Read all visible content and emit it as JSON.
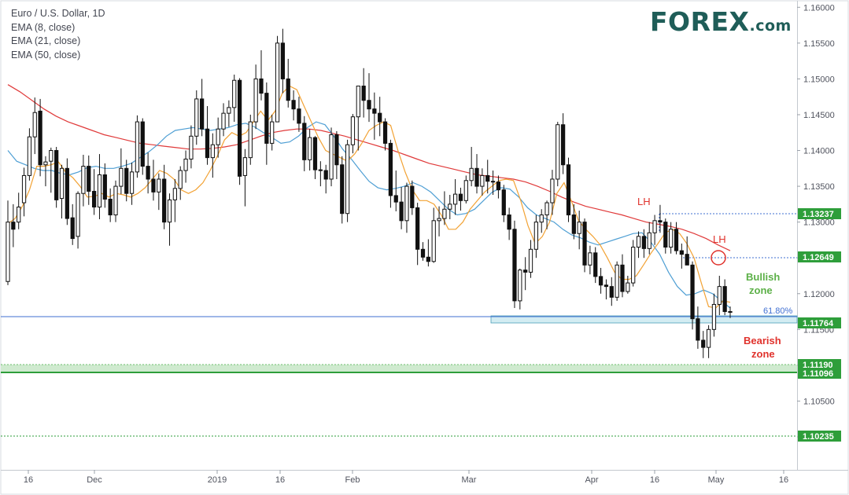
{
  "legend": {
    "title": "Euro / U.S. Dollar, 1D",
    "ema_short": "EMA (8, close)",
    "ema_mid": "EMA (21, close)",
    "ema_long": "EMA (50, close)"
  },
  "logo": {
    "main": "FOREX",
    "suffix": ".com"
  },
  "colors": {
    "ema8": "#f2a234",
    "ema21": "#4f9fd4",
    "ema50": "#e03a3a",
    "candle": "#111111",
    "support_zone": "#d3ecf2",
    "green_zone": "#bfe3bf",
    "price_tag": "#2e9e3a",
    "annotation_red": "#e0322c",
    "annotation_green": "#5cb048",
    "fib": "#3f6fd2"
  },
  "chart_data": {
    "type": "candlestick",
    "title": "Euro / U.S. Dollar, 1D",
    "indicators": [
      "EMA (8, close)",
      "EMA (21, close)",
      "EMA (50, close)"
    ],
    "ylim": [
      1.0955,
      1.1608
    ],
    "y_ticks": [
      "1.16000",
      "1.15500",
      "1.15000",
      "1.14500",
      "1.14000",
      "1.13500",
      "1.13000",
      "1.12500",
      "1.12000",
      "1.11500",
      "1.11000",
      "1.10500",
      "1.10000"
    ],
    "x_ticks": [
      "16",
      "Dec",
      "2019",
      "16",
      "Feb",
      "Mar",
      "Apr",
      "16",
      "May",
      "16"
    ],
    "candles": [
      [
        1.1217,
        1.133,
        1.1212,
        1.13
      ],
      [
        1.13,
        1.1325,
        1.1265,
        1.129
      ],
      [
        1.13,
        1.1341,
        1.129,
        1.1321
      ],
      [
        1.1327,
        1.1376,
        1.1308,
        1.1365
      ],
      [
        1.1365,
        1.1431,
        1.1358,
        1.1419
      ],
      [
        1.1419,
        1.1474,
        1.1395,
        1.1453
      ],
      [
        1.1455,
        1.1472,
        1.1364,
        1.138
      ],
      [
        1.138,
        1.1392,
        1.135,
        1.1384
      ],
      [
        1.1385,
        1.1404,
        1.1341,
        1.14
      ],
      [
        1.14,
        1.1405,
        1.132,
        1.1331
      ],
      [
        1.1333,
        1.138,
        1.1305,
        1.1375
      ],
      [
        1.1375,
        1.1389,
        1.1296,
        1.1305
      ],
      [
        1.1306,
        1.1325,
        1.1268,
        1.1277
      ],
      [
        1.128,
        1.1343,
        1.1263,
        1.134
      ],
      [
        1.134,
        1.1394,
        1.1322,
        1.1378
      ],
      [
        1.1378,
        1.1393,
        1.1324,
        1.1343
      ],
      [
        1.1343,
        1.1374,
        1.131,
        1.1321
      ],
      [
        1.1321,
        1.1395,
        1.1304,
        1.1366
      ],
      [
        1.1366,
        1.1382,
        1.132,
        1.1332
      ],
      [
        1.1332,
        1.1347,
        1.13,
        1.131
      ],
      [
        1.131,
        1.1358,
        1.13,
        1.135
      ],
      [
        1.135,
        1.1403,
        1.1339,
        1.1375
      ],
      [
        1.1375,
        1.1387,
        1.1329,
        1.134
      ],
      [
        1.134,
        1.1383,
        1.1324,
        1.137
      ],
      [
        1.137,
        1.1449,
        1.1362,
        1.144
      ],
      [
        1.144,
        1.1445,
        1.1366,
        1.1378
      ],
      [
        1.1378,
        1.1397,
        1.134,
        1.136
      ],
      [
        1.136,
        1.1387,
        1.133,
        1.1342
      ],
      [
        1.1342,
        1.1368,
        1.1317,
        1.136
      ],
      [
        1.136,
        1.138,
        1.129,
        1.13
      ],
      [
        1.13,
        1.134,
        1.1267,
        1.1331
      ],
      [
        1.1331,
        1.136,
        1.13,
        1.1347
      ],
      [
        1.1347,
        1.1378,
        1.1331,
        1.1372
      ],
      [
        1.1372,
        1.14,
        1.1355,
        1.1388
      ],
      [
        1.1388,
        1.1435,
        1.1375,
        1.142
      ],
      [
        1.142,
        1.1484,
        1.1408,
        1.1472
      ],
      [
        1.1472,
        1.15,
        1.142,
        1.143
      ],
      [
        1.143,
        1.1462,
        1.138,
        1.139
      ],
      [
        1.139,
        1.1424,
        1.1362,
        1.1408
      ],
      [
        1.1408,
        1.1446,
        1.139,
        1.143
      ],
      [
        1.143,
        1.1466,
        1.142,
        1.1452
      ],
      [
        1.1452,
        1.147,
        1.1433,
        1.146
      ],
      [
        1.146,
        1.1506,
        1.144,
        1.1498
      ],
      [
        1.1498,
        1.1501,
        1.1352,
        1.1364
      ],
      [
        1.1365,
        1.1402,
        1.1322,
        1.139
      ],
      [
        1.139,
        1.145,
        1.138,
        1.144
      ],
      [
        1.144,
        1.152,
        1.143,
        1.15
      ],
      [
        1.15,
        1.154,
        1.147,
        1.148
      ],
      [
        1.148,
        1.1495,
        1.138,
        1.141
      ],
      [
        1.141,
        1.145,
        1.14,
        1.144
      ],
      [
        1.144,
        1.156,
        1.144,
        1.155
      ],
      [
        1.155,
        1.157,
        1.148,
        1.15
      ],
      [
        1.15,
        1.1528,
        1.146,
        1.147
      ],
      [
        1.147,
        1.1484,
        1.1442,
        1.1458
      ],
      [
        1.1458,
        1.1475,
        1.1426,
        1.1438
      ],
      [
        1.1438,
        1.1448,
        1.1371,
        1.1387
      ],
      [
        1.1387,
        1.143,
        1.1372,
        1.1418
      ],
      [
        1.1418,
        1.142,
        1.136,
        1.1373
      ],
      [
        1.1373,
        1.1385,
        1.135,
        1.1372
      ],
      [
        1.1372,
        1.138,
        1.134,
        1.136
      ],
      [
        1.136,
        1.1432,
        1.135,
        1.1422
      ],
      [
        1.1422,
        1.1427,
        1.136,
        1.138
      ],
      [
        1.138,
        1.1392,
        1.1298,
        1.1312
      ],
      [
        1.1312,
        1.1415,
        1.13,
        1.1408
      ],
      [
        1.1408,
        1.1451,
        1.1396,
        1.1447
      ],
      [
        1.1447,
        1.1485,
        1.14,
        1.149
      ],
      [
        1.149,
        1.1515,
        1.1446,
        1.147
      ],
      [
        1.147,
        1.1508,
        1.144,
        1.1458
      ],
      [
        1.1458,
        1.1481,
        1.1415,
        1.1452
      ],
      [
        1.1452,
        1.1475,
        1.142,
        1.144
      ],
      [
        1.144,
        1.1445,
        1.14,
        1.141
      ],
      [
        1.141,
        1.1415,
        1.132,
        1.1337
      ],
      [
        1.1337,
        1.1372,
        1.1315,
        1.1328
      ],
      [
        1.1328,
        1.1349,
        1.129,
        1.1302
      ],
      [
        1.1302,
        1.1355,
        1.1285,
        1.135
      ],
      [
        1.135,
        1.1358,
        1.131,
        1.132
      ],
      [
        1.132,
        1.1327,
        1.124,
        1.1262
      ],
      [
        1.1262,
        1.1272,
        1.1246,
        1.1251
      ],
      [
        1.1251,
        1.1276,
        1.1238,
        1.1245
      ],
      [
        1.1245,
        1.132,
        1.1243,
        1.1302
      ],
      [
        1.1302,
        1.1322,
        1.128,
        1.1305
      ],
      [
        1.1305,
        1.1343,
        1.1296,
        1.1318
      ],
      [
        1.1318,
        1.1338,
        1.1304,
        1.1325
      ],
      [
        1.1325,
        1.136,
        1.131,
        1.1339
      ],
      [
        1.1339,
        1.1348,
        1.1316,
        1.133
      ],
      [
        1.133,
        1.1365,
        1.1326,
        1.1358
      ],
      [
        1.1358,
        1.1405,
        1.135,
        1.1375
      ],
      [
        1.1375,
        1.1395,
        1.134,
        1.135
      ],
      [
        1.135,
        1.1375,
        1.1337,
        1.1365
      ],
      [
        1.1365,
        1.1387,
        1.134,
        1.1357
      ],
      [
        1.1357,
        1.1372,
        1.1338,
        1.1356
      ],
      [
        1.1356,
        1.1365,
        1.1333,
        1.1345
      ],
      [
        1.1345,
        1.1352,
        1.13,
        1.131
      ],
      [
        1.131,
        1.132,
        1.1275,
        1.129
      ],
      [
        1.129,
        1.1302,
        1.118,
        1.119
      ],
      [
        1.119,
        1.1235,
        1.1178,
        1.1233
      ],
      [
        1.1233,
        1.1251,
        1.1205,
        1.123
      ],
      [
        1.123,
        1.1275,
        1.1222,
        1.1262
      ],
      [
        1.1262,
        1.131,
        1.125,
        1.13
      ],
      [
        1.13,
        1.1318,
        1.1285,
        1.131
      ],
      [
        1.131,
        1.133,
        1.129,
        1.1327
      ],
      [
        1.1327,
        1.1373,
        1.131,
        1.136
      ],
      [
        1.136,
        1.144,
        1.135,
        1.1436
      ],
      [
        1.1436,
        1.1452,
        1.1367,
        1.138
      ],
      [
        1.138,
        1.139,
        1.13,
        1.131
      ],
      [
        1.131,
        1.1325,
        1.1276,
        1.1284
      ],
      [
        1.1284,
        1.1316,
        1.1262,
        1.13
      ],
      [
        1.13,
        1.1305,
        1.123,
        1.124
      ],
      [
        1.124,
        1.1267,
        1.1227,
        1.1257
      ],
      [
        1.1257,
        1.1265,
        1.1215,
        1.1224
      ],
      [
        1.1224,
        1.1236,
        1.12,
        1.1212
      ],
      [
        1.1212,
        1.122,
        1.1192,
        1.121
      ],
      [
        1.121,
        1.1223,
        1.1183,
        1.1195
      ],
      [
        1.1195,
        1.1245,
        1.119,
        1.124
      ],
      [
        1.124,
        1.1255,
        1.1195,
        1.1203
      ],
      [
        1.1203,
        1.1225,
        1.12,
        1.1215
      ],
      [
        1.1215,
        1.1275,
        1.121,
        1.1265
      ],
      [
        1.1265,
        1.1287,
        1.125,
        1.128
      ],
      [
        1.128,
        1.129,
        1.125,
        1.1263
      ],
      [
        1.1263,
        1.13,
        1.1255,
        1.1285
      ],
      [
        1.1285,
        1.131,
        1.1268,
        1.1302
      ],
      [
        1.1302,
        1.1324,
        1.1285,
        1.13
      ],
      [
        1.13,
        1.1305,
        1.1256,
        1.1265
      ],
      [
        1.1265,
        1.13,
        1.1256,
        1.129
      ],
      [
        1.129,
        1.13,
        1.1255,
        1.126
      ],
      [
        1.126,
        1.127,
        1.1235,
        1.1255
      ],
      [
        1.1255,
        1.128,
        1.124,
        1.124
      ],
      [
        1.124,
        1.1245,
        1.115,
        1.1165
      ],
      [
        1.1165,
        1.1182,
        1.1123,
        1.1135
      ],
      [
        1.1135,
        1.1148,
        1.111,
        1.1125
      ],
      [
        1.1125,
        1.1156,
        1.111,
        1.115
      ],
      [
        1.115,
        1.12,
        1.114,
        1.1185
      ],
      [
        1.1185,
        1.1225,
        1.117,
        1.121
      ],
      [
        1.121,
        1.122,
        1.117,
        1.1175
      ],
      [
        1.1175,
        1.1182,
        1.1166,
        1.1174
      ]
    ],
    "ema8": [
      1.1298,
      1.1305,
      1.1322,
      1.1345,
      1.1378,
      1.1378,
      1.138,
      1.1384,
      1.137,
      1.1362,
      1.135,
      1.1335,
      1.1336,
      1.134,
      1.1335,
      1.134,
      1.1338,
      1.1335,
      1.134,
      1.1348,
      1.136,
      1.1372,
      1.1368,
      1.136,
      1.1345,
      1.134,
      1.1345,
      1.1355,
      1.1372,
      1.1392,
      1.1415,
      1.1425,
      1.142,
      1.1425,
      1.144,
      1.1455,
      1.1442,
      1.1455,
      1.148,
      1.149,
      1.1485,
      1.1462,
      1.144,
      1.1418,
      1.14,
      1.1395,
      1.139,
      1.1385,
      1.1395,
      1.141,
      1.1428,
      1.1435,
      1.144,
      1.1435,
      1.14,
      1.137,
      1.1345,
      1.133,
      1.133,
      1.1325,
      1.131,
      1.129,
      1.129,
      1.13,
      1.1318,
      1.133,
      1.1342,
      1.135,
      1.1358,
      1.136,
      1.1358,
      1.133,
      1.1295,
      1.127,
      1.128,
      1.13,
      1.134,
      1.1355,
      1.133,
      1.1302,
      1.129,
      1.128,
      1.1268,
      1.125,
      1.123,
      1.122,
      1.122,
      1.1225,
      1.124,
      1.1256,
      1.127,
      1.1285,
      1.129,
      1.1284,
      1.127,
      1.125,
      1.1215,
      1.1182,
      1.118,
      1.119,
      1.1188
    ],
    "ema21": [
      1.14,
      1.1385,
      1.138,
      1.1375,
      1.1372,
      1.1372,
      1.1368,
      1.1366,
      1.137,
      1.1376,
      1.1378,
      1.1375,
      1.1375,
      1.1378,
      1.1382,
      1.139,
      1.1398,
      1.1408,
      1.142,
      1.1428,
      1.143,
      1.1432,
      1.143,
      1.1428,
      1.143,
      1.1432,
      1.1436,
      1.1438,
      1.1433,
      1.1425,
      1.1418,
      1.141,
      1.1412,
      1.142,
      1.1432,
      1.144,
      1.1436,
      1.142,
      1.1402,
      1.1388,
      1.1372,
      1.1357,
      1.1348,
      1.1345,
      1.1347,
      1.135,
      1.1355,
      1.135,
      1.1342,
      1.133,
      1.1318,
      1.131,
      1.1312,
      1.1318,
      1.133,
      1.1342,
      1.1348,
      1.1346,
      1.1335,
      1.132,
      1.131,
      1.1305,
      1.13,
      1.129,
      1.1282,
      1.1278,
      1.1272,
      1.1268,
      1.1272,
      1.1276,
      1.128,
      1.1284,
      1.1285,
      1.1272,
      1.1255,
      1.123,
      1.121,
      1.1198,
      1.12,
      1.1205,
      1.12,
      1.119,
      1.118
    ],
    "ema50": [
      1.1492,
      1.1482,
      1.147,
      1.1458,
      1.1448,
      1.144,
      1.1434,
      1.1428,
      1.1422,
      1.1418,
      1.1414,
      1.141,
      1.1408,
      1.1406,
      1.1404,
      1.1402,
      1.1402,
      1.1403,
      1.1405,
      1.1408,
      1.1414,
      1.142,
      1.1425,
      1.1428,
      1.143,
      1.143,
      1.1428,
      1.1424,
      1.142,
      1.1415,
      1.141,
      1.1405,
      1.14,
      1.1394,
      1.1388,
      1.1382,
      1.1378,
      1.1374,
      1.137,
      1.1366,
      1.1364,
      1.1362,
      1.136,
      1.1356,
      1.135,
      1.1343,
      1.1335,
      1.1328,
      1.1322,
      1.1318,
      1.1314,
      1.131,
      1.1305,
      1.13,
      1.1297,
      1.1294,
      1.129,
      1.1284,
      1.1277,
      1.1268,
      1.126
    ]
  },
  "levels": {
    "r1": "1.13237",
    "r2": "1.12649",
    "pivot": "1.11764",
    "s1": "1.11190",
    "s2": "1.11096",
    "s3": "1.10235"
  },
  "annotations": {
    "lh1": "LH",
    "lh2": "LH",
    "bullish": "Bullish\nzone",
    "bearish": "Bearish\nzone",
    "fib": "61.80%"
  }
}
